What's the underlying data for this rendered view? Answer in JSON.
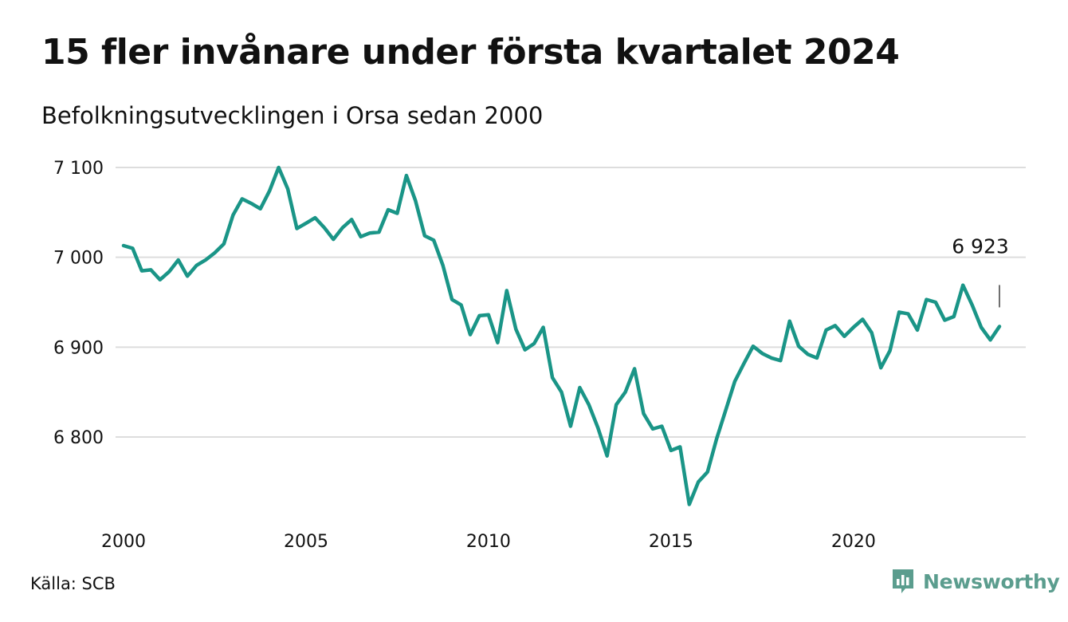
{
  "header": {
    "title": "15 fler invånare under första kvartalet 2024",
    "subtitle": "Befolkningsutvecklingen i Orsa sedan 2000"
  },
  "footer": {
    "source": "Källa: SCB",
    "brand": "Newsworthy",
    "brand_icon": "bar-chart-logo-icon"
  },
  "colors": {
    "line": "#1a9587",
    "grid": "#dddddd",
    "brand": "#5b9d8e"
  },
  "chart_data": {
    "type": "line",
    "title": "15 fler invånare under första kvartalet 2024",
    "subtitle": "Befolkningsutvecklingen i Orsa sedan 2000",
    "xlabel": "",
    "ylabel": "",
    "xlim": [
      2000,
      2024
    ],
    "ylim": [
      6715,
      7120
    ],
    "x_ticks": [
      2000,
      2005,
      2010,
      2015,
      2020
    ],
    "x_tick_labels": [
      "2000",
      "2005",
      "2010",
      "2015",
      "2020"
    ],
    "y_ticks": [
      6800,
      6900,
      7000,
      7100
    ],
    "y_tick_labels": [
      "6 800",
      "6 900",
      "7 000",
      "7 100"
    ],
    "grid": true,
    "annotation": {
      "x": 2024.0,
      "y": 6923,
      "label": "6 923"
    },
    "series": [
      {
        "x": [
          2000.0,
          2000.25,
          2000.5,
          2000.75,
          2001.0,
          2001.25,
          2001.5,
          2001.75,
          2002.0,
          2002.25,
          2002.5,
          2002.75,
          2003.0,
          2003.25,
          2003.5,
          2003.75,
          2004.0,
          2004.25,
          2004.5,
          2004.75,
          2005.0,
          2005.25,
          2005.5,
          2005.75,
          2006.0,
          2006.25,
          2006.5,
          2006.75,
          2007.0,
          2007.25,
          2007.5,
          2007.75,
          2008.0,
          2008.25,
          2008.5,
          2008.75,
          2009.0,
          2009.25,
          2009.5,
          2009.75,
          2010.0,
          2010.25,
          2010.5,
          2010.75,
          2011.0,
          2011.25,
          2011.5,
          2011.75,
          2012.0,
          2012.25,
          2012.5,
          2012.75,
          2013.0,
          2013.25,
          2013.5,
          2013.75,
          2014.0,
          2014.25,
          2014.5,
          2014.75,
          2015.0,
          2015.25,
          2015.5,
          2015.75,
          2016.0,
          2016.25,
          2016.5,
          2016.75,
          2017.0,
          2017.25,
          2017.5,
          2017.75,
          2018.0,
          2018.25,
          2018.5,
          2018.75,
          2019.0,
          2019.25,
          2019.5,
          2019.75,
          2020.0,
          2020.25,
          2020.5,
          2020.75,
          2021.0,
          2021.25,
          2021.5,
          2021.75,
          2022.0,
          2022.25,
          2022.5,
          2022.75,
          2023.0,
          2023.25,
          2023.5,
          2023.75,
          2024.0
        ],
        "values": [
          7013,
          7010,
          6985,
          6986,
          6975,
          6984,
          6997,
          6979,
          6991,
          6997,
          7005,
          7015,
          7047,
          7065,
          7060,
          7054,
          7074,
          7100,
          7076,
          7032,
          7038,
          7044,
          7033,
          7020,
          7033,
          7042,
          7023,
          7027,
          7028,
          7053,
          7049,
          7091,
          7063,
          7024,
          7019,
          6991,
          6953,
          6947,
          6914,
          6935,
          6936,
          6905,
          6963,
          6920,
          6897,
          6904,
          6922,
          6866,
          6850,
          6812,
          6855,
          6836,
          6810,
          6779,
          6836,
          6850,
          6876,
          6826,
          6809,
          6812,
          6785,
          6789,
          6725,
          6750,
          6761,
          6798,
          6830,
          6862,
          6882,
          6901,
          6893,
          6888,
          6885,
          6929,
          6901,
          6892,
          6888,
          6919,
          6924,
          6912,
          6922,
          6931,
          6916,
          6877,
          6896,
          6939,
          6937,
          6919,
          6953,
          6950,
          6930,
          6934,
          6969,
          6947,
          6922,
          6908,
          6923
        ]
      }
    ]
  }
}
